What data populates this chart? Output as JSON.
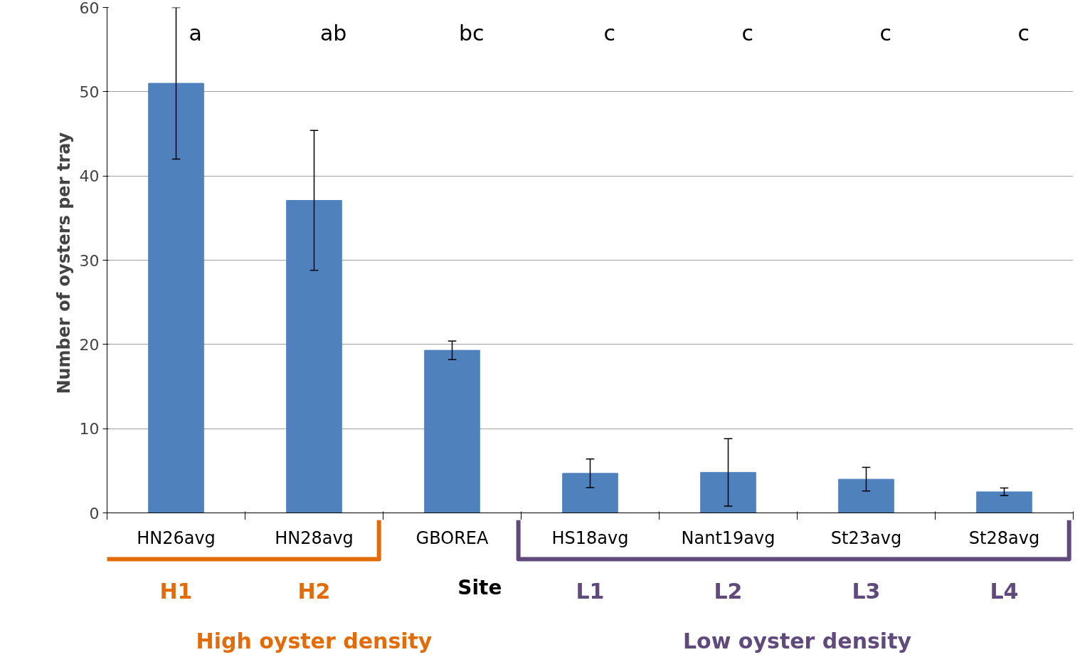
{
  "chart_data": {
    "type": "bar",
    "categories": [
      "HN26avg",
      "HN28avg",
      "GBOREA",
      "HS18avg",
      "Nant19avg",
      "St23avg",
      "St28avg"
    ],
    "values": [
      51,
      37.1,
      19.3,
      4.7,
      4.8,
      4.0,
      2.5
    ],
    "errors": [
      9,
      8.3,
      1.1,
      1.7,
      4,
      1.4,
      0.45
    ],
    "color": "#4f81bd",
    "xlabel": "Site",
    "ylabel": "Number of  oysters per tray",
    "ylim": [
      0,
      60
    ],
    "yticks": [
      0,
      10,
      20,
      30,
      40,
      50,
      60
    ],
    "grid": "y",
    "annotations": [
      "a",
      "ab",
      "bc",
      "c",
      "c",
      "c",
      "c",
      "H1",
      "H2",
      "L1",
      "L2",
      "L3",
      "L4",
      "High oyster density",
      "Low oyster density"
    ]
  }
}
